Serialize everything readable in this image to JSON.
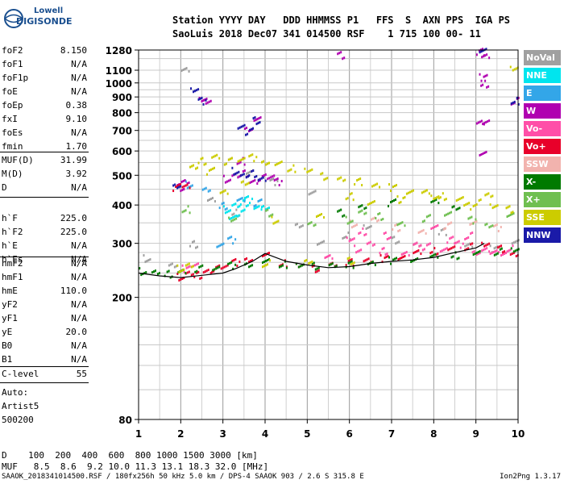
{
  "logo": {
    "line1": "Lowell",
    "line2": "DIGISONDE"
  },
  "header": {
    "row1": "Station YYYY DAY   DDD HHMMSS P1   FFS  S  AXN PPS  IGA PS",
    "row2": "SaoLuis 2018 Dec07 341 014500 RSF    1 715 100 00- 11"
  },
  "params": [
    {
      "k": "foF2",
      "v": "8.150"
    },
    {
      "k": "foF1",
      "v": "N/A"
    },
    {
      "k": "foF1p",
      "v": "N/A"
    },
    {
      "k": "foE",
      "v": "N/A"
    },
    {
      "k": "foEp",
      "v": "0.38"
    },
    {
      "k": "fxI",
      "v": "9.10"
    },
    {
      "k": "foEs",
      "v": "N/A"
    },
    {
      "k": "fmin",
      "v": "1.70"
    },
    {
      "k": "MUF(D)",
      "v": "31.99"
    },
    {
      "k": "M(D)",
      "v": "3.92"
    },
    {
      "k": "D",
      "v": "N/A"
    },
    {
      "k": "h`F",
      "v": "225.0"
    },
    {
      "k": "h`F2",
      "v": "225.0"
    },
    {
      "k": "h`E",
      "v": "N/A"
    },
    {
      "k": "h`Es",
      "v": "N/A"
    },
    {
      "k": "hmF2",
      "v": "N/A"
    },
    {
      "k": "hmF1",
      "v": "N/A"
    },
    {
      "k": "hmE",
      "v": "110.0"
    },
    {
      "k": "yF2",
      "v": "N/A"
    },
    {
      "k": "yF1",
      "v": "N/A"
    },
    {
      "k": "yE",
      "v": "20.0"
    },
    {
      "k": "B0",
      "v": "N/A"
    },
    {
      "k": "B1",
      "v": "N/A"
    },
    {
      "k": "C-level",
      "v": "55"
    }
  ],
  "auto": {
    "l1": "Auto:",
    "l2": "Artist5",
    "l3": "500200"
  },
  "legend": [
    {
      "label": "NoVal",
      "color": "#a0a0a0"
    },
    {
      "label": "NNE",
      "color": "#00e5ee"
    },
    {
      "label": "E",
      "color": "#33a6e8"
    },
    {
      "label": "W",
      "color": "#b000b0"
    },
    {
      "label": "Vo-",
      "color": "#ff4fa8"
    },
    {
      "label": "Vo+",
      "color": "#e8002a"
    },
    {
      "label": "SSW",
      "color": "#f2b3ae"
    },
    {
      "label": "X-",
      "color": "#007a00"
    },
    {
      "label": "X+",
      "color": "#6fbf50"
    },
    {
      "label": "SSE",
      "color": "#cccc00"
    },
    {
      "label": "NNW",
      "color": "#1a1aa8"
    }
  ],
  "bottom": {
    "row1": "D    100  200  400  600  800 1000 1500 3000 [km]",
    "row2": "MUF   8.5  8.6  9.2 10.0 11.3 13.1 18.3 32.0 [MHz]"
  },
  "footer": {
    "left": "SAAOK_2018341014500.RSF / 180fx256h 50 kHz 5.0 km / DPS-4 SAAOK 903 / 2.6 S 315.8 E",
    "right": "Ion2Png 1.3.17"
  },
  "chart_data": {
    "type": "scatter",
    "title": "",
    "xlabel": "",
    "ylabel": "",
    "xlim": [
      1,
      10
    ],
    "ylim": [
      80,
      1280
    ],
    "yscale": "log",
    "grid": true,
    "legend_position": "right",
    "x_ticks": [
      "1",
      "2",
      "3",
      "4",
      "5",
      "6",
      "7",
      "8",
      "9",
      "10"
    ],
    "y_ticks": [
      {
        "v": 80,
        "label": "80"
      },
      {
        "v": 200,
        "label": "200"
      },
      {
        "v": 300,
        "label": "300"
      },
      {
        "v": 400,
        "label": "400"
      },
      {
        "v": 500,
        "label": "500"
      },
      {
        "v": 600,
        "label": "600"
      },
      {
        "v": 700,
        "label": "700"
      },
      {
        "v": 800,
        "label": "800"
      },
      {
        "v": 900,
        "label": "900"
      },
      {
        "v": 1000,
        "label": "1000"
      },
      {
        "v": 1100,
        "label": "1100"
      },
      {
        "v": 1280,
        "label": "1280"
      }
    ],
    "y_grid": [
      80,
      100,
      120,
      140,
      160,
      180,
      200,
      220,
      240,
      260,
      280,
      300,
      350,
      400,
      450,
      500,
      550,
      600,
      650,
      700,
      750,
      800,
      850,
      900,
      950,
      1000,
      1100,
      1200,
      1280
    ],
    "trace": {
      "x": [
        1.0,
        1.5,
        2.0,
        2.5,
        3.0,
        3.3,
        3.7,
        4.0,
        4.5,
        5.0,
        5.5,
        6.0,
        6.5,
        7.0,
        7.5,
        8.0,
        8.5,
        9.0,
        9.2
      ],
      "y": [
        240,
        235,
        232,
        236,
        240,
        248,
        262,
        278,
        262,
        255,
        250,
        252,
        258,
        262,
        265,
        270,
        280,
        290,
        300
      ]
    },
    "series": [
      {
        "name": "NoVal",
        "color": "#a0a0a0",
        "x": [
          1.2,
          1.8,
          2.3,
          2.7,
          3.1,
          3.6,
          4.2,
          4.8,
          5.3,
          5.9,
          6.4,
          7.1,
          7.6,
          8.2,
          8.8,
          9.4,
          9.9,
          2.1,
          3.3,
          5.1
        ],
        "y": [
          270,
          255,
          300,
          420,
          560,
          520,
          480,
          350,
          300,
          320,
          340,
          310,
          300,
          330,
          300,
          290,
          310,
          1100,
          380,
          440
        ]
      },
      {
        "name": "NNE",
        "color": "#00e5ee",
        "x": [
          3.1,
          3.3,
          3.5,
          3.8,
          3.4,
          3.2,
          3.6,
          4.0
        ],
        "y": [
          390,
          400,
          410,
          395,
          380,
          370,
          420,
          400
        ]
      },
      {
        "name": "E",
        "color": "#33a6e8",
        "x": [
          2.2,
          2.6,
          3.0,
          3.4,
          3.8,
          2.9,
          3.2
        ],
        "y": [
          470,
          450,
          400,
          420,
          410,
          300,
          310
        ]
      },
      {
        "name": "W",
        "color": "#b000b0",
        "x": [
          3.1,
          3.3,
          3.5,
          3.7,
          3.9,
          4.1,
          4.3,
          3.6,
          3.8,
          3.4,
          2.6,
          2.0,
          2.1,
          9.1,
          9.2,
          9.15,
          9.2,
          9.1,
          9.2,
          9.15,
          9.9,
          2.5,
          5.8
        ],
        "y": [
          490,
          500,
          510,
          480,
          495,
          500,
          480,
          720,
          760,
          560,
          870,
          460,
          480,
          1270,
          1240,
          1050,
          760,
          740,
          1000,
          590,
          880,
          890,
          1240
        ]
      },
      {
        "name": "Vo-",
        "color": "#ff4fa8",
        "x": [
          6.2,
          6.5,
          6.8,
          7.3,
          7.8,
          8.2,
          8.6,
          9.0,
          9.4,
          9.8,
          6.0,
          6.9,
          7.6,
          8.4,
          9.2,
          2.1,
          2.3,
          5.5,
          6.3,
          8.0,
          8.8,
          9.6
        ],
        "y": [
          290,
          300,
          285,
          280,
          295,
          290,
          300,
          285,
          280,
          290,
          310,
          320,
          300,
          310,
          290,
          250,
          260,
          270,
          330,
          340,
          320,
          280
        ]
      },
      {
        "name": "Vo+",
        "color": "#e8002a",
        "x": [
          2.0,
          2.2,
          2.4,
          2.6,
          2.8,
          3.0,
          3.3,
          3.6,
          4.0,
          4.4,
          4.8,
          5.2,
          5.6,
          6.0,
          6.4,
          6.8,
          7.2,
          7.6,
          8.0,
          8.4,
          8.8,
          9.2,
          9.6,
          9.9,
          1.9,
          2.1
        ],
        "y": [
          235,
          240,
          238,
          245,
          250,
          255,
          262,
          270,
          275,
          260,
          255,
          250,
          258,
          262,
          268,
          270,
          275,
          280,
          285,
          290,
          295,
          300,
          290,
          280,
          460,
          470
        ]
      },
      {
        "name": "SSW",
        "color": "#f2b3ae",
        "x": [
          6.1,
          6.6,
          7.1,
          7.7,
          8.3,
          8.9,
          9.5
        ],
        "y": [
          350,
          360,
          340,
          330,
          345,
          355,
          340
        ]
      },
      {
        "name": "X-",
        "color": "#007a00",
        "x": [
          1.1,
          1.4,
          1.7,
          2.0,
          2.4,
          2.8,
          3.2,
          3.6,
          4.0,
          4.4,
          4.8,
          5.2,
          5.6,
          6.0,
          6.5,
          7.0,
          7.5,
          8.0,
          8.5,
          9.0,
          9.5,
          9.9,
          5.8,
          6.3,
          7.0,
          8.0,
          8.5
        ],
        "y": [
          245,
          242,
          240,
          245,
          250,
          252,
          256,
          260,
          262,
          258,
          255,
          255,
          257,
          258,
          262,
          266,
          270,
          272,
          276,
          280,
          284,
          288,
          380,
          400,
          410,
          420,
          390
        ]
      },
      {
        "name": "X+",
        "color": "#6fbf50",
        "x": [
          6.0,
          6.3,
          6.7,
          7.2,
          7.8,
          8.3,
          8.9,
          9.3,
          9.8,
          2.1,
          3.2,
          4.1,
          5.1
        ],
        "y": [
          360,
          380,
          370,
          350,
          365,
          380,
          360,
          350,
          370,
          390,
          360,
          380,
          350
        ]
      },
      {
        "name": "SSE",
        "color": "#cccc00",
        "x": [
          2.0,
          2.2,
          2.5,
          2.8,
          3.1,
          3.4,
          3.7,
          4.0,
          4.3,
          4.6,
          5.0,
          5.4,
          5.8,
          6.2,
          6.6,
          7.0,
          7.4,
          7.8,
          8.2,
          8.6,
          9.0,
          9.4,
          9.8,
          2.3,
          2.7,
          3.0,
          3.5,
          4.2,
          5.3,
          6.0,
          6.5,
          7.2,
          8.0,
          8.8,
          9.3,
          9.9,
          4.0,
          5.0,
          6.0
        ],
        "y": [
          250,
          255,
          560,
          580,
          560,
          570,
          575,
          560,
          545,
          530,
          520,
          500,
          490,
          480,
          470,
          460,
          450,
          440,
          430,
          420,
          410,
          400,
          390,
          540,
          520,
          450,
          470,
          360,
          370,
          430,
          410,
          420,
          430,
          400,
          440,
          1110,
          260,
          262,
          265
        ]
      },
      {
        "name": "NNW",
        "color": "#1a1aa8",
        "x": [
          3.3,
          3.5,
          3.7,
          3.9,
          3.6,
          3.4,
          2.5,
          1.9,
          9.15,
          9.9,
          2.3,
          3.8
        ],
        "y": [
          520,
          500,
          510,
          490,
          700,
          730,
          880,
          470,
          1270,
          880,
          950,
          760
        ]
      }
    ]
  }
}
